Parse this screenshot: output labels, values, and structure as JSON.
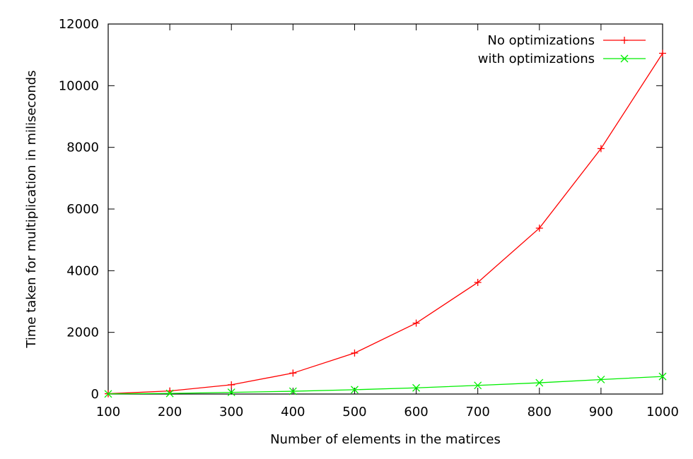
{
  "chart_data": {
    "type": "line",
    "xlabel": "Number of elements in the matirces",
    "ylabel": "Time taken for multiplication in miliseconds",
    "xlim": [
      100,
      1000
    ],
    "ylim": [
      0,
      12000
    ],
    "x_ticks": [
      "100",
      "200",
      "300",
      "400",
      "500",
      "600",
      "700",
      "800",
      "900",
      "1000"
    ],
    "y_ticks": [
      "0",
      "2000",
      "4000",
      "6000",
      "8000",
      "10000",
      "12000"
    ],
    "grid": false,
    "legend_position": "top-right",
    "x": [
      100,
      200,
      300,
      400,
      500,
      600,
      700,
      800,
      900,
      1000
    ],
    "series": [
      {
        "name": "No optimizations",
        "color": "#ff0000",
        "marker": "plus",
        "values": [
          10,
          100,
          300,
          680,
          1330,
          2300,
          3620,
          5380,
          7960,
          11050
        ]
      },
      {
        "name": "with optimizations",
        "color": "#00ee00",
        "marker": "cross",
        "values": [
          5,
          20,
          55,
          90,
          140,
          200,
          280,
          365,
          470,
          570
        ]
      }
    ]
  }
}
